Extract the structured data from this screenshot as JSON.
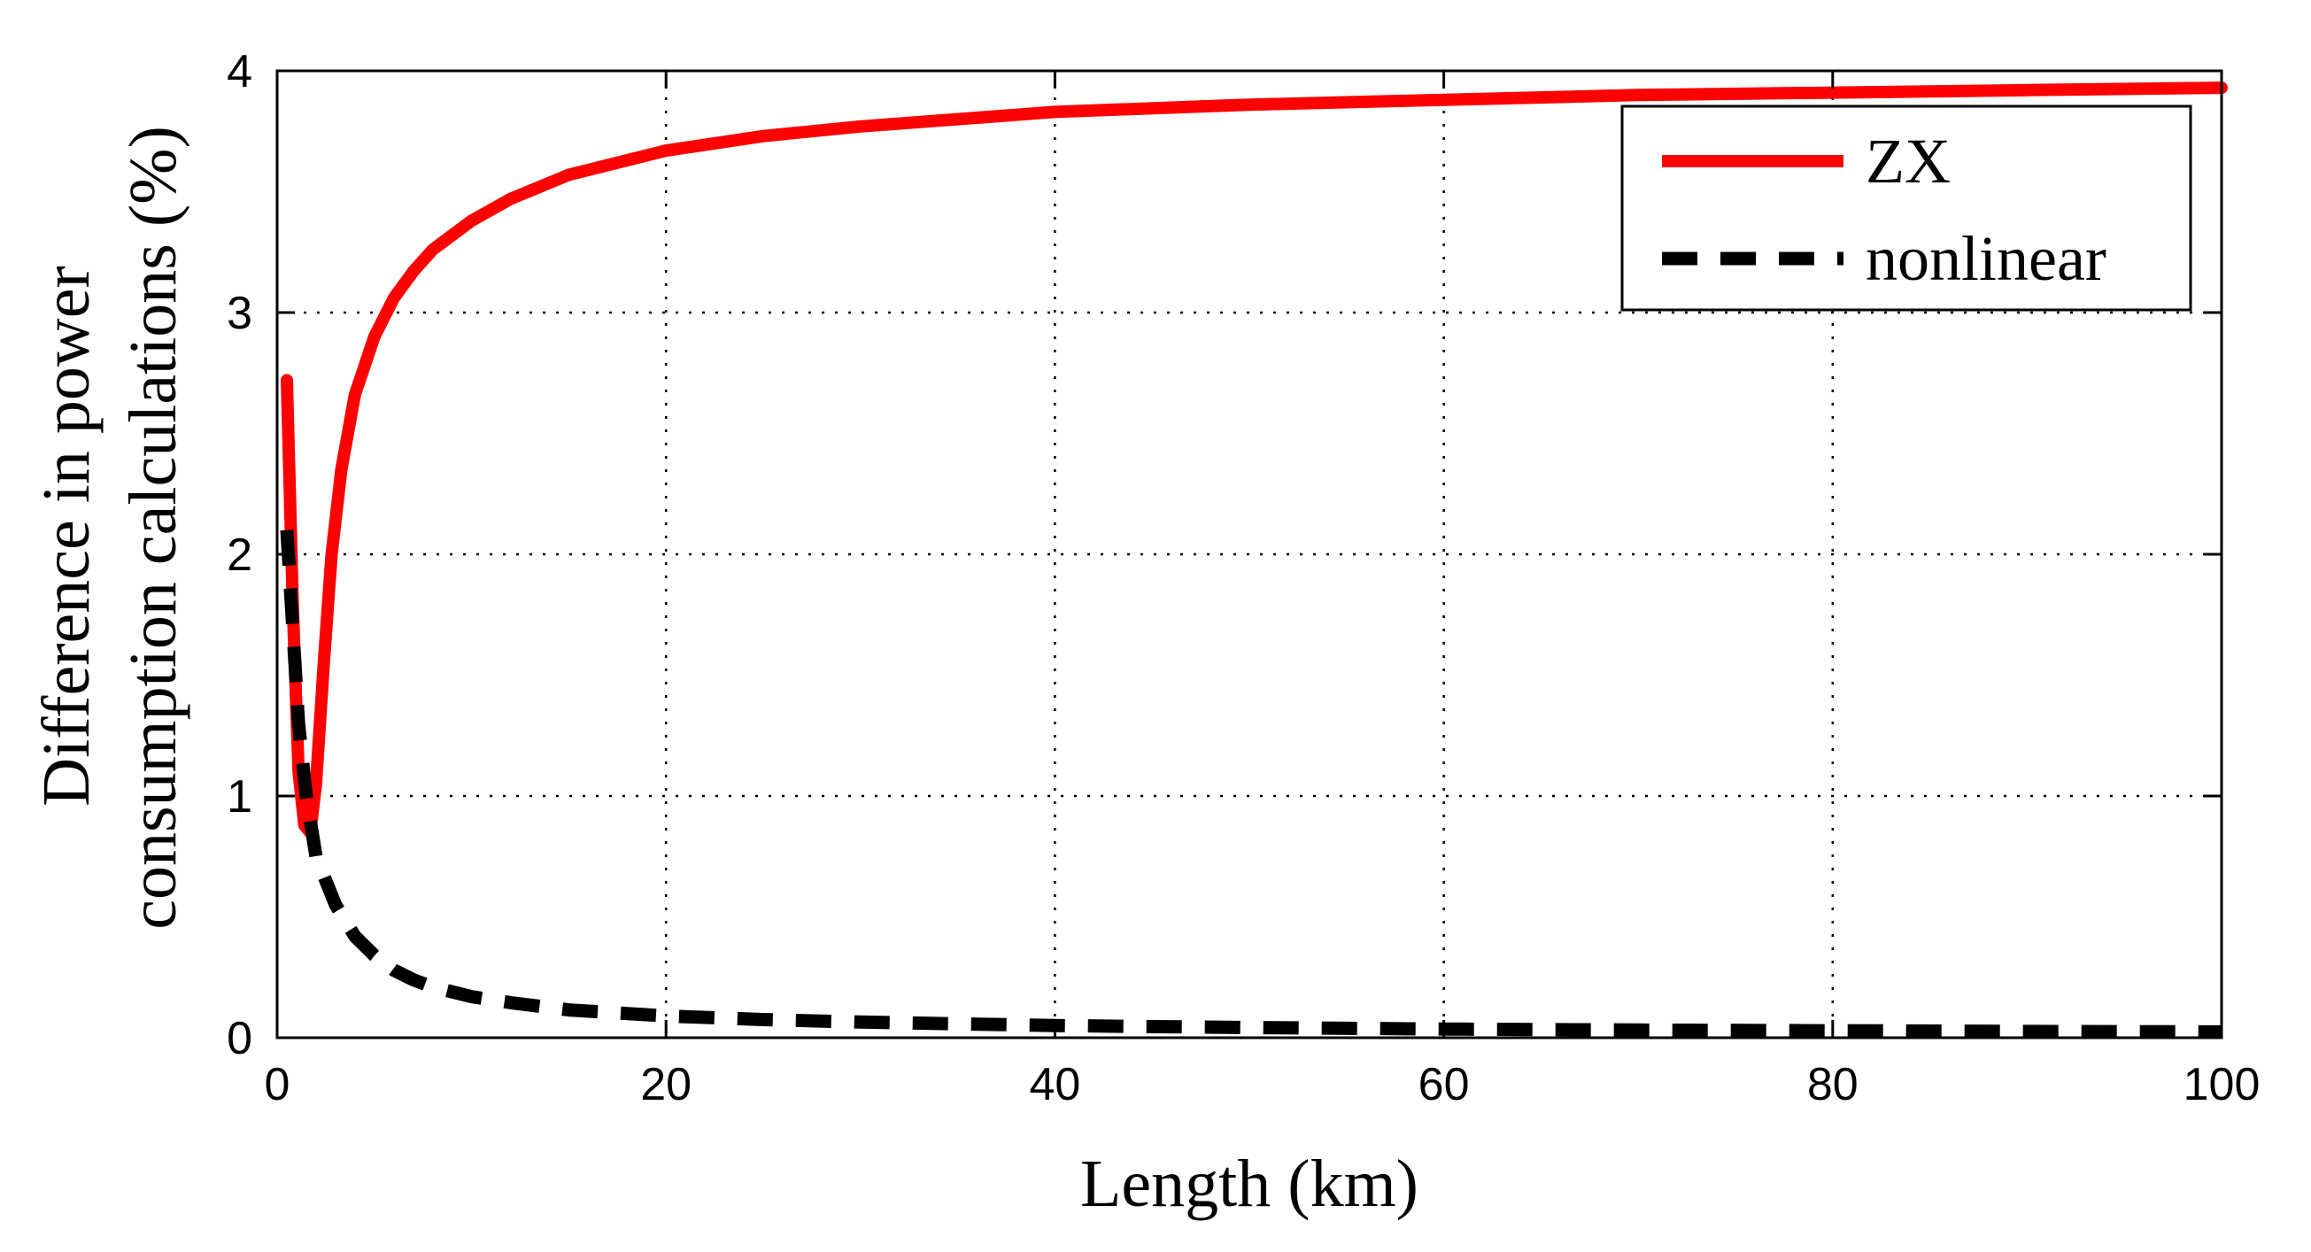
{
  "chart_data": {
    "type": "line",
    "title": "",
    "xlabel": "Length (km)",
    "ylabel_lines": [
      "Difference in power",
      "consumption calculations (%)"
    ],
    "xlim": [
      0,
      100
    ],
    "ylim": [
      0,
      4
    ],
    "xticks": [
      0,
      20,
      40,
      60,
      80,
      100
    ],
    "yticks": [
      0,
      1,
      2,
      3,
      4
    ],
    "grid": true,
    "legend": {
      "position": "top-right"
    },
    "series": [
      {
        "name": "ZX",
        "color": "#ff0000",
        "style": "solid",
        "x": [
          0.5,
          0.5,
          0.8,
          1.1,
          1.4,
          1.7,
          2.0,
          2.4,
          2.8,
          3.3,
          4,
          5,
          6,
          7,
          8,
          10,
          12,
          15,
          20,
          25,
          30,
          40,
          50,
          60,
          70,
          80,
          90,
          100
        ],
        "y": [
          2.72,
          2.72,
          1.8,
          1.1,
          0.88,
          0.85,
          1.05,
          1.55,
          2.0,
          2.35,
          2.66,
          2.9,
          3.06,
          3.17,
          3.26,
          3.38,
          3.47,
          3.57,
          3.67,
          3.73,
          3.77,
          3.83,
          3.86,
          3.88,
          3.9,
          3.91,
          3.92,
          3.93
        ]
      },
      {
        "name": "nonlinear",
        "color": "#000000",
        "style": "dashed",
        "x": [
          0.5,
          0.8,
          1.1,
          1.5,
          2,
          3,
          4,
          5,
          6,
          7,
          8,
          10,
          12,
          15,
          20,
          25,
          30,
          40,
          50,
          60,
          70,
          80,
          90,
          100
        ],
        "y": [
          2.1,
          1.7,
          1.3,
          1.0,
          0.75,
          0.55,
          0.42,
          0.34,
          0.28,
          0.24,
          0.21,
          0.17,
          0.145,
          0.115,
          0.09,
          0.075,
          0.065,
          0.05,
          0.042,
          0.036,
          0.032,
          0.029,
          0.026,
          0.024
        ]
      }
    ]
  }
}
